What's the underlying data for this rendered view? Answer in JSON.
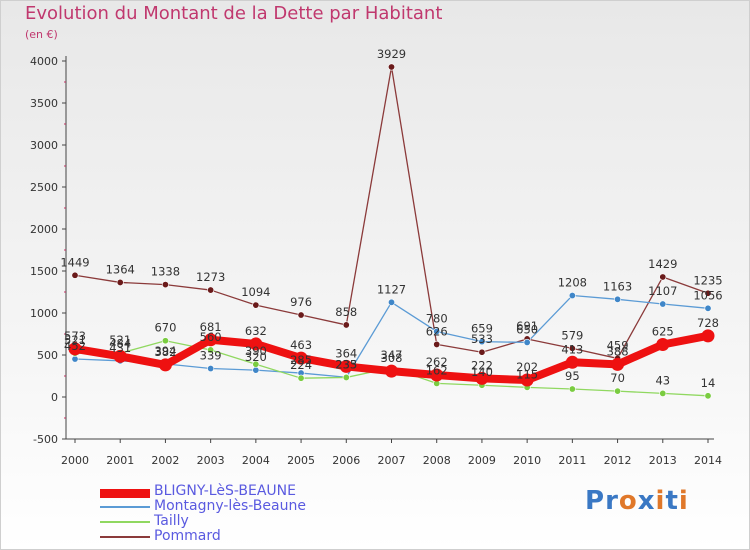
{
  "title": "Evolution du Montant de la Dette par Habitant",
  "subtitle": "(en €)",
  "brand": {
    "text": "Proxiti",
    "colors": [
      "#3a78c4",
      "#3a78c4",
      "#e0782a",
      "#3a78c4",
      "#e0782a",
      "#3a78c4",
      "#e0782a"
    ]
  },
  "chart_data": {
    "type": "line",
    "x": [
      "2000",
      "2001",
      "2002",
      "2003",
      "2004",
      "2005",
      "2006",
      "2007",
      "2008",
      "2009",
      "2010",
      "2011",
      "2012",
      "2013",
      "2014"
    ],
    "yticks": [
      "4000",
      "3500",
      "3000",
      "2500",
      "2000",
      "1500",
      "1000",
      "500",
      "0",
      "-500"
    ],
    "ylim": [
      -500,
      4000
    ],
    "grid": false,
    "legend_position": "bottom-left",
    "series": [
      {
        "name": "BLIGNY-LèS-BEAUNE",
        "color": "#ee1111",
        "marker": "#ee1111",
        "width": 8,
        "values": [
          573,
          484,
          382,
          681,
          632,
          463,
          364,
          308,
          262,
          222,
          202,
          413,
          388,
          625,
          728
        ],
        "labels": [
          "573",
          "484",
          "382",
          "681",
          "632",
          "463",
          "364",
          "308",
          "262",
          "222",
          "202",
          "413",
          "388",
          "625",
          "728"
        ]
      },
      {
        "name": "Montagny-lès-Beaune",
        "color": "#5b9bd5",
        "marker": "#3f86c8",
        "width": 1.3,
        "values": [
          452,
          431,
          394,
          339,
          320,
          285,
          235,
          1127,
          780,
          659,
          650,
          1208,
          1163,
          1107,
          1056
        ],
        "labels": [
          "452",
          "431",
          "394",
          "339",
          "320",
          "285",
          "235",
          "1127",
          "780",
          "659",
          "650",
          "1208",
          "1163",
          "1107",
          "1056"
        ]
      },
      {
        "name": "Tailly",
        "color": "#90d860",
        "marker": "#7acc40",
        "width": 1.3,
        "values": [
          521,
          521,
          670,
          560,
          390,
          224,
          233,
          347,
          162,
          140,
          115,
          95,
          70,
          43,
          14
        ],
        "labels": [
          "521",
          "521",
          "670",
          "560",
          "390",
          "224",
          "233",
          "347",
          "162",
          "140",
          "115",
          "95",
          "70",
          "43",
          "14"
        ]
      },
      {
        "name": "Pommard",
        "color": "#8b3a3a",
        "marker": "#6a1a1a",
        "width": 1.3,
        "values": [
          1449,
          1364,
          1338,
          1273,
          1094,
          976,
          858,
          3929,
          626,
          533,
          691,
          579,
          459,
          1429,
          1235
        ],
        "labels": [
          "1449",
          "1364",
          "1338",
          "1273",
          "1094",
          "976",
          "858",
          "3929",
          "626",
          "533",
          "691",
          "579",
          "459",
          "1429",
          "1235"
        ]
      }
    ]
  }
}
